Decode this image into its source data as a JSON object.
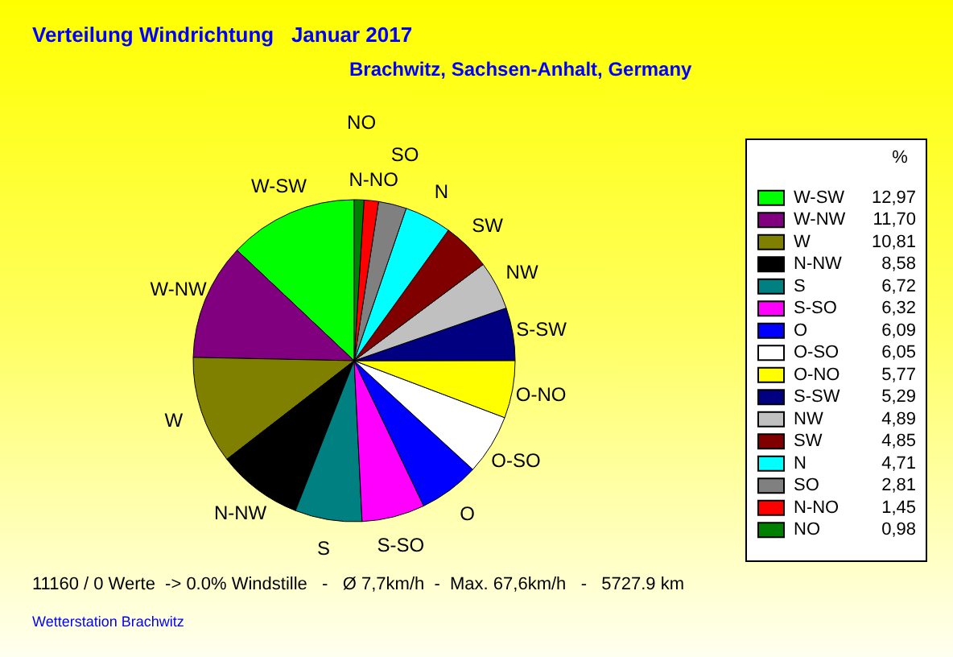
{
  "chart_data": {
    "type": "pie",
    "title": "Verteilung Windrichtung   Januar 2017",
    "subtitle": "Brachwitz, Sachsen-Anhalt, Germany",
    "legend_title": "%",
    "legend": "right",
    "categories": [
      "W-SW",
      "W-NW",
      "W",
      "N-NW",
      "S",
      "S-SO",
      "O",
      "O-SO",
      "O-NO",
      "S-SW",
      "NW",
      "SW",
      "N",
      "SO",
      "N-NO",
      "NO"
    ],
    "values": [
      12.97,
      11.7,
      10.81,
      8.58,
      6.72,
      6.32,
      6.09,
      6.05,
      5.77,
      5.29,
      4.89,
      4.85,
      4.71,
      2.81,
      1.45,
      0.98
    ],
    "value_labels": [
      "12,97",
      "11,70",
      "10,81",
      "8,58",
      "6,72",
      "6,32",
      "6,09",
      "6,05",
      "5,77",
      "5,29",
      "4,89",
      "4,85",
      "4,71",
      "2,81",
      "1,45",
      "0,98"
    ],
    "colors": [
      "#00ff00",
      "#800080",
      "#808000",
      "#000000",
      "#008080",
      "#ff00ff",
      "#0000ff",
      "#ffffff",
      "#ffff00",
      "#000080",
      "#c0c0c0",
      "#800000",
      "#00ffff",
      "#808080",
      "#ff0000",
      "#008000"
    ],
    "annotations": [
      "11160 / 0 Werte  -> 0.0% Windstille   -   Ø 7,7km/h  -  Max. 67,6km/h   -   5727.9 km",
      "Wetterstation Brachwitz"
    ]
  }
}
